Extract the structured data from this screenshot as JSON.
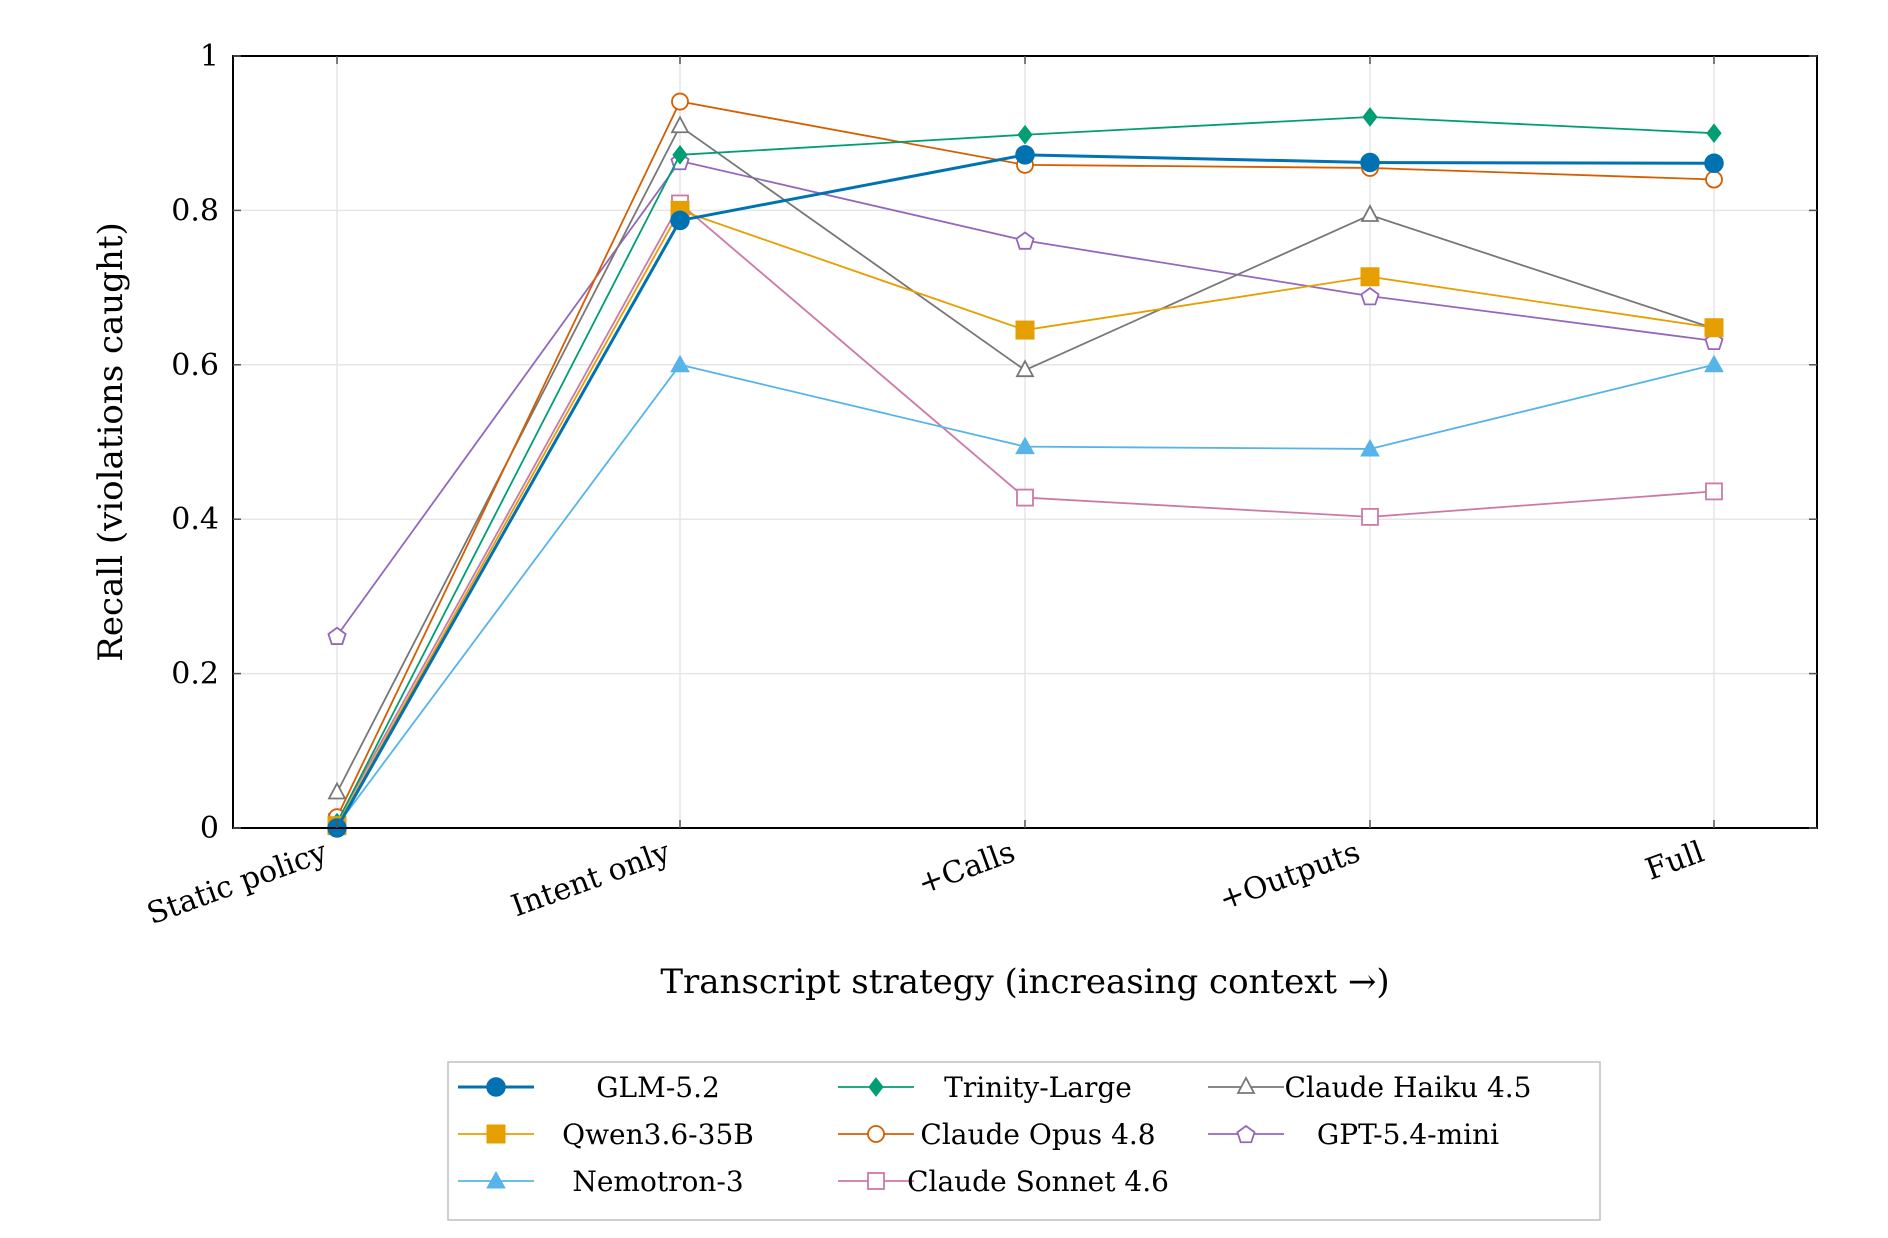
{
  "chart_data": {
    "type": "line",
    "title": "",
    "xlabel": "Transcript strategy (increasing context →)",
    "ylabel": "Recall (violations caught)",
    "categories": [
      "Static policy",
      "Intent only",
      "+Calls",
      "+Outputs",
      "Full"
    ],
    "ylim": [
      0,
      1
    ],
    "yticks": [
      "0",
      "0.2",
      "0.4",
      "0.6",
      "0.8",
      "1"
    ],
    "ytick_values": [
      0,
      0.2,
      0.4,
      0.6,
      0.8,
      1
    ],
    "grid": true,
    "legend_position": "bottom-center, below plot",
    "series": [
      {
        "name": "GLM-5.2",
        "color": "#0072B2",
        "marker": "filled-circle",
        "values": [
          0.0,
          0.787,
          0.872,
          0.862,
          0.861
        ]
      },
      {
        "name": "Qwen3.6-35B",
        "color": "#E69F00",
        "marker": "filled-square",
        "values": [
          0.003,
          0.8,
          0.645,
          0.714,
          0.648
        ]
      },
      {
        "name": "Nemotron-3",
        "color": "#56B4E9",
        "marker": "filled-triangle",
        "values": [
          0.003,
          0.6,
          0.494,
          0.491,
          0.6
        ]
      },
      {
        "name": "Trinity-Large",
        "color": "#009E73",
        "marker": "filled-diamond",
        "values": [
          0.007,
          0.872,
          0.898,
          0.921,
          0.9
        ]
      },
      {
        "name": "Claude Opus 4.8",
        "color": "#D55E00",
        "marker": "open-circle",
        "values": [
          0.014,
          0.941,
          0.859,
          0.855,
          0.84
        ]
      },
      {
        "name": "Claude Sonnet 4.6",
        "color": "#CC79A7",
        "marker": "open-square",
        "values": [
          0.008,
          0.809,
          0.428,
          0.403,
          0.436
        ]
      },
      {
        "name": "Claude Haiku 4.5",
        "color": "#777777",
        "marker": "open-triangle",
        "values": [
          0.046,
          0.909,
          0.593,
          0.794,
          0.647
        ]
      },
      {
        "name": "GPT-5.4-mini",
        "color": "#9467BD",
        "marker": "open-pentagon",
        "values": [
          0.249,
          0.864,
          0.761,
          0.689,
          0.631
        ]
      }
    ]
  }
}
